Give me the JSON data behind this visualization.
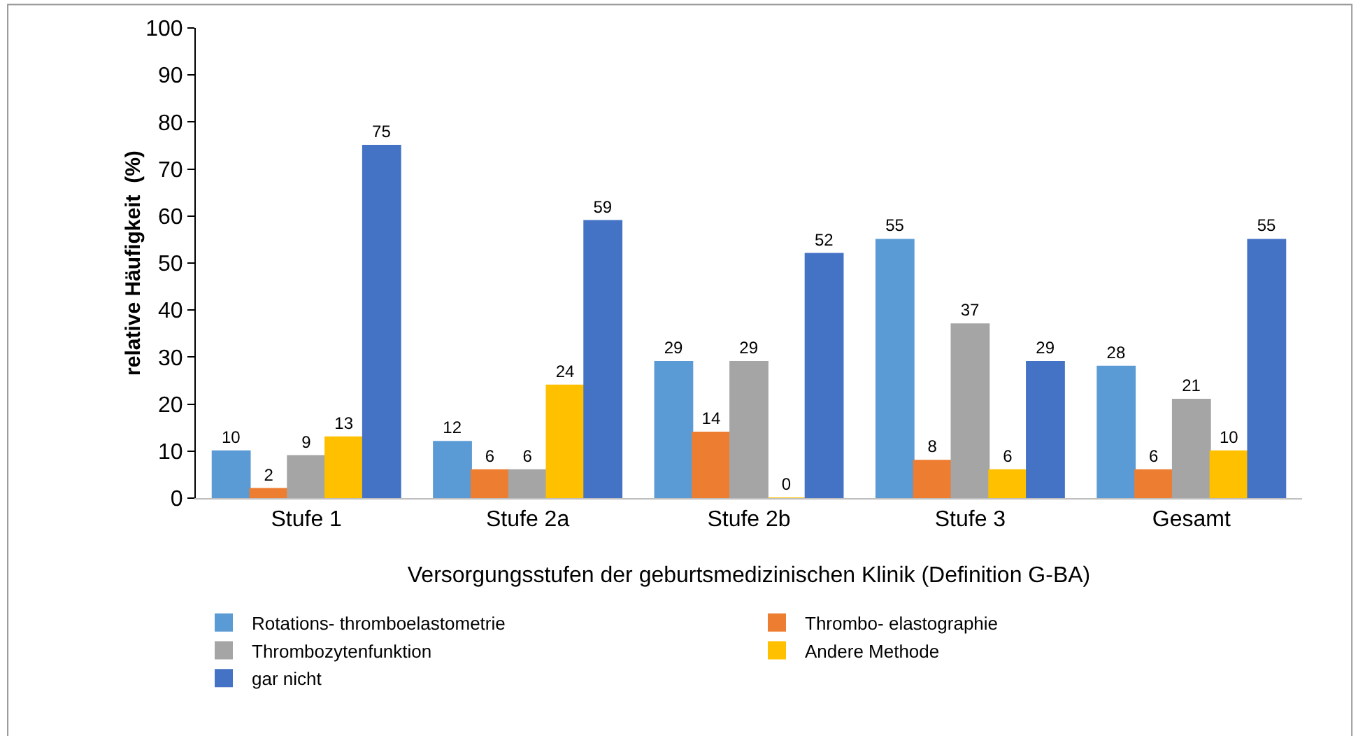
{
  "chart_data": {
    "type": "bar",
    "xlabel": "Versorgungsstufen der geburtsmedizinischen Klinik (Definition G-BA)",
    "ylabel": "relative Häufigkeit  (%)",
    "categories": [
      "Stufe 1",
      "Stufe 2a",
      "Stufe 2b",
      "Stufe 3",
      "Gesamt"
    ],
    "series": [
      {
        "name": "Rotations- thromboelastometrie",
        "color": "#5b9bd5",
        "values": [
          10,
          12,
          29,
          55,
          28
        ]
      },
      {
        "name": "Thrombo- elastographie",
        "color": "#ed7d31",
        "values": [
          2,
          6,
          14,
          8,
          6
        ]
      },
      {
        "name": "Thrombozytenfunktion",
        "color": "#a5a5a5",
        "values": [
          9,
          6,
          29,
          37,
          21
        ]
      },
      {
        "name": "Andere Methode",
        "color": "#ffc000",
        "values": [
          13,
          24,
          0,
          6,
          10
        ]
      },
      {
        "name": "gar nicht",
        "color": "#4472c4",
        "values": [
          75,
          59,
          52,
          29,
          55
        ]
      }
    ],
    "ylim": [
      0,
      100
    ],
    "yticks": [
      0,
      10,
      20,
      30,
      40,
      50,
      60,
      70,
      80,
      90,
      100
    ],
    "grid": false,
    "data_labels": true,
    "legend": "bottom"
  }
}
